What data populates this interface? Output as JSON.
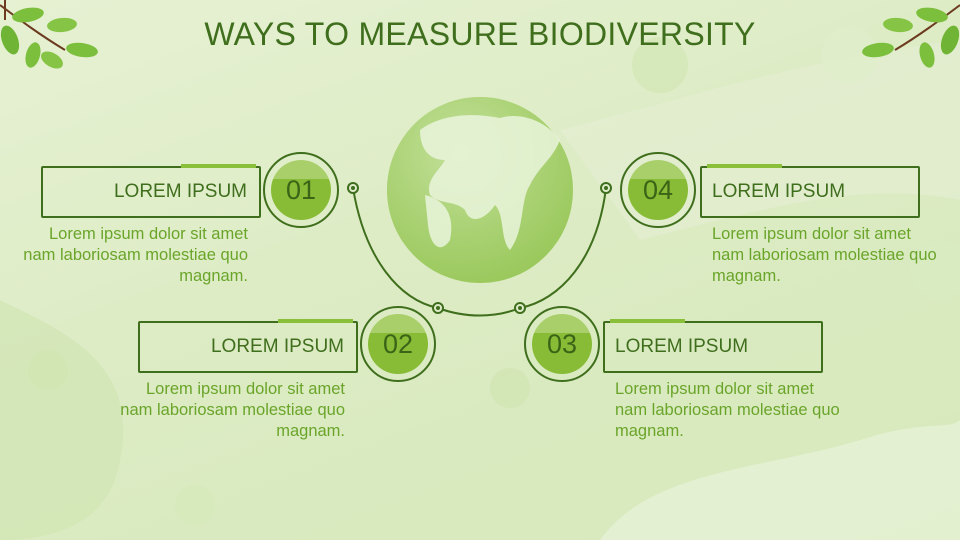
{
  "title": "WAYS TO MEASURE BIODIVERSITY",
  "items": [
    {
      "number": "01",
      "heading": "LOREM IPSUM",
      "text": "Lorem ipsum dolor sit amet nam laboriosam molestiae quo magnam."
    },
    {
      "number": "02",
      "heading": "LOREM IPSUM",
      "text": "Lorem ipsum dolor sit amet nam laboriosam molestiae quo magnam."
    },
    {
      "number": "03",
      "heading": "LOREM IPSUM",
      "text": "Lorem ipsum dolor sit amet nam laboriosam molestiae quo magnam."
    },
    {
      "number": "04",
      "heading": "LOREM IPSUM",
      "text": "Lorem ipsum dolor sit amet nam laboriosam molestiae quo magnam."
    }
  ],
  "colors": {
    "dark_green": "#3f6e1d",
    "accent_green": "#88bc36",
    "text_green": "#6aa52a"
  }
}
